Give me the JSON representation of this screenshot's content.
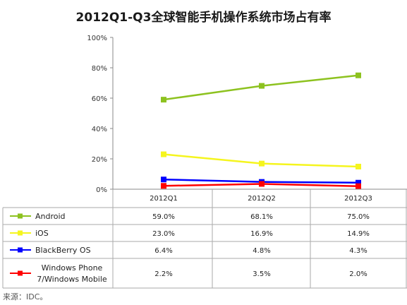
{
  "title": "2012Q1-Q3全球智能手机操作系统市场占有率",
  "source": "来源：IDC。",
  "chart_data": {
    "type": "line",
    "title": "2012Q1-Q3全球智能手机操作系统市场占有率",
    "categories": [
      "2012Q1",
      "2012Q2",
      "2012Q3"
    ],
    "yticks": [
      "0%",
      "20%",
      "40%",
      "60%",
      "80%",
      "100%"
    ],
    "ylim": [
      0,
      100
    ],
    "grid": false,
    "legend": "table-left",
    "series": [
      {
        "name": "Android",
        "color": "#8dc21f",
        "values": [
          59.0,
          68.1,
          75.0
        ],
        "labels": [
          "59.0%",
          "68.1%",
          "75.0%"
        ]
      },
      {
        "name": "iOS",
        "color": "#f5f51e",
        "values": [
          23.0,
          16.9,
          14.9
        ],
        "labels": [
          "23.0%",
          "16.9%",
          "14.9%"
        ]
      },
      {
        "name": "BlackBerry OS",
        "color": "#0000ff",
        "values": [
          6.4,
          4.8,
          4.3
        ],
        "labels": [
          "6.4%",
          "4.8%",
          "4.3%"
        ]
      },
      {
        "name": "Windows Phone 7/Windows Mobile",
        "name_lines": [
          "Windows Phone",
          "7/Windows Mobile"
        ],
        "color": "#ff0000",
        "values": [
          2.2,
          3.5,
          2.0
        ],
        "labels": [
          "2.2%",
          "3.5%",
          "2.0%"
        ]
      }
    ]
  }
}
